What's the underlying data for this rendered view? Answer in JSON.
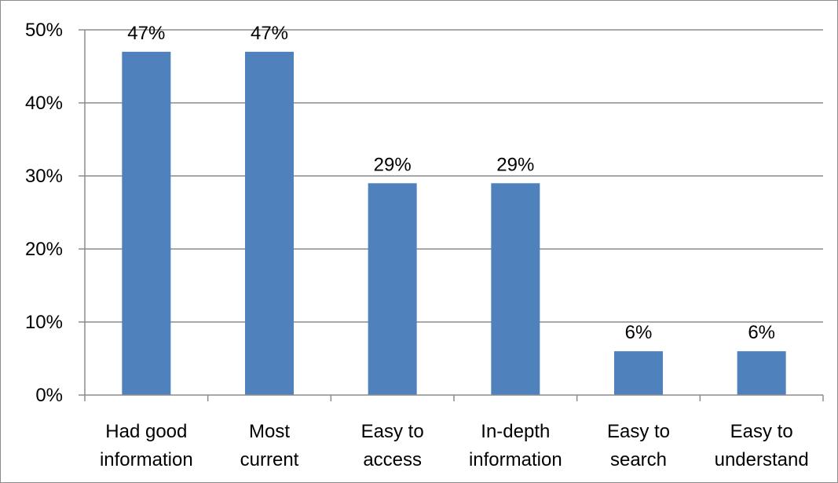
{
  "chart_data": {
    "type": "bar",
    "categories": [
      [
        "Had good",
        "information"
      ],
      [
        "Most",
        "current"
      ],
      [
        "Easy to",
        "access"
      ],
      [
        "In-depth",
        "information"
      ],
      [
        "Easy to",
        "search"
      ],
      [
        "Easy to",
        "understand"
      ]
    ],
    "values": [
      47,
      47,
      29,
      29,
      6,
      6
    ],
    "data_labels": [
      "47%",
      "47%",
      "29%",
      "29%",
      "6%",
      "6%"
    ],
    "y_ticks": [
      "0%",
      "10%",
      "20%",
      "30%",
      "40%",
      "50%"
    ],
    "ylim": [
      0,
      50
    ],
    "grid": true,
    "legend": "none",
    "colors": {
      "bar": "#4f81bd",
      "grid": "#8c8c8c",
      "axis": "#8c8c8c"
    }
  }
}
